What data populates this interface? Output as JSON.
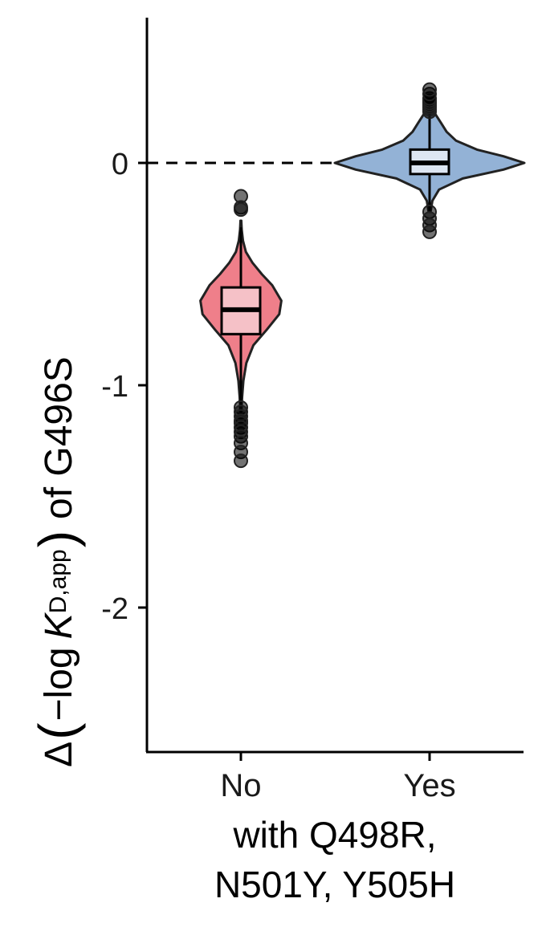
{
  "chart_data": {
    "type": "violin",
    "categories": [
      "No",
      "Yes"
    ],
    "xlabel_lines": [
      "with Q498R,",
      "N501Y, Y505H"
    ],
    "ylabel": {
      "delta": "Δ",
      "open": "(",
      "minus": "−log",
      "k": "K",
      "sub": "D,app",
      "close": ")",
      "suffix": "of G496S"
    },
    "ylim": [
      -2.65,
      0.65
    ],
    "yticks": [
      0,
      -1,
      -2
    ],
    "ytick_labels": [
      "0",
      "-1",
      "-2"
    ],
    "reference_line": 0,
    "grid": false,
    "series": [
      {
        "category": "No",
        "fill": "#ef7f8a",
        "box_fill": "#f5c1c7",
        "median": -0.66,
        "q1": -0.77,
        "q3": -0.56,
        "whisker_low": -1.09,
        "whisker_high": -0.29,
        "density": [
          [
            -1.12,
            0.01
          ],
          [
            -1.05,
            0.03
          ],
          [
            -0.98,
            0.06
          ],
          [
            -0.9,
            0.13
          ],
          [
            -0.82,
            0.3
          ],
          [
            -0.75,
            0.62
          ],
          [
            -0.68,
            0.92
          ],
          [
            -0.62,
            0.97
          ],
          [
            -0.55,
            0.75
          ],
          [
            -0.5,
            0.5
          ],
          [
            -0.45,
            0.28
          ],
          [
            -0.4,
            0.12
          ],
          [
            -0.35,
            0.05
          ],
          [
            -0.3,
            0.02
          ],
          [
            -0.26,
            0.01
          ]
        ],
        "outliers": [
          -0.15,
          -0.2,
          -0.21,
          -1.1,
          -1.12,
          -1.14,
          -1.16,
          -1.17,
          -1.19,
          -1.21,
          -1.23,
          -1.26,
          -1.3,
          -1.34
        ]
      },
      {
        "category": "Yes",
        "fill": "#93b2d6",
        "box_fill": "#dde6f2",
        "median": 0.0,
        "q1": -0.05,
        "q3": 0.06,
        "whisker_low": -0.22,
        "whisker_high": 0.22,
        "density": [
          [
            -0.22,
            0.01
          ],
          [
            -0.17,
            0.03
          ],
          [
            -0.12,
            0.1
          ],
          [
            -0.07,
            0.35
          ],
          [
            -0.03,
            0.78
          ],
          [
            0.0,
            1.0
          ],
          [
            0.03,
            0.78
          ],
          [
            0.06,
            0.5
          ],
          [
            0.1,
            0.28
          ],
          [
            0.14,
            0.18
          ],
          [
            0.18,
            0.12
          ],
          [
            0.22,
            0.06
          ],
          [
            0.25,
            0.02
          ],
          [
            0.28,
            0.01
          ]
        ],
        "outliers": [
          0.23,
          0.24,
          0.25,
          0.26,
          0.27,
          0.28,
          0.29,
          0.31,
          0.33,
          -0.22,
          -0.25,
          -0.28,
          -0.31
        ]
      }
    ]
  }
}
